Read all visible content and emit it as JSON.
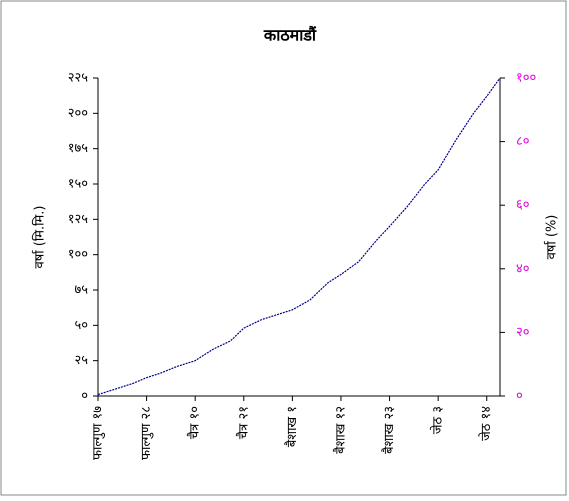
{
  "chart_data": {
    "type": "line",
    "title": "काठमाडौं",
    "y_label": "वर्षा (मि.मि.)",
    "y2_label": "वर्षा (%)",
    "x": [
      0,
      4,
      8,
      11,
      14,
      18,
      22,
      26,
      30,
      33,
      37,
      41,
      44,
      48,
      52,
      55,
      59,
      63,
      66,
      70,
      74,
      77,
      81,
      85,
      88,
      91
    ],
    "series": [
      {
        "color": "#00008b",
        "values": [
          1,
          5,
          9,
          13,
          16,
          21,
          25,
          33,
          39,
          48,
          54,
          58,
          61,
          68,
          80,
          86,
          95,
          110,
          120,
          134,
          150,
          160,
          181,
          200,
          212,
          225
        ]
      }
    ],
    "xlim": [
      0,
      91
    ],
    "xticks": [
      {
        "value": 0,
        "label": "फाल्गुण १७"
      },
      {
        "value": 11,
        "label": "फाल्गुण २८"
      },
      {
        "value": 22,
        "label": "चैत्र १०"
      },
      {
        "value": 33,
        "label": "चैत्र २१"
      },
      {
        "value": 44,
        "label": "बैशाख १"
      },
      {
        "value": 55,
        "label": "बैशाख १२"
      },
      {
        "value": 66,
        "label": "बैशाख २३"
      },
      {
        "value": 77,
        "label": "जेठ ३"
      },
      {
        "value": 88,
        "label": "जेठ १४"
      }
    ],
    "ylim": [
      0,
      225
    ],
    "yticks": [
      {
        "value": 0,
        "label": "०"
      },
      {
        "value": 25,
        "label": "२५"
      },
      {
        "value": 50,
        "label": "५०"
      },
      {
        "value": 75,
        "label": "७५"
      },
      {
        "value": 100,
        "label": "१००"
      },
      {
        "value": 125,
        "label": "१२५"
      },
      {
        "value": 150,
        "label": "१५०"
      },
      {
        "value": 175,
        "label": "१७५"
      },
      {
        "value": 200,
        "label": "२००"
      },
      {
        "value": 225,
        "label": "२२५"
      }
    ],
    "y2lim": [
      0,
      100
    ],
    "y2ticks": [
      {
        "value": 0,
        "label": "०"
      },
      {
        "value": 20,
        "label": "२०"
      },
      {
        "value": 40,
        "label": "४०"
      },
      {
        "value": 60,
        "label": "६०"
      },
      {
        "value": 80,
        "label": "८०"
      },
      {
        "value": 100,
        "label": "१००"
      }
    ],
    "y2color": "#e000e0"
  }
}
